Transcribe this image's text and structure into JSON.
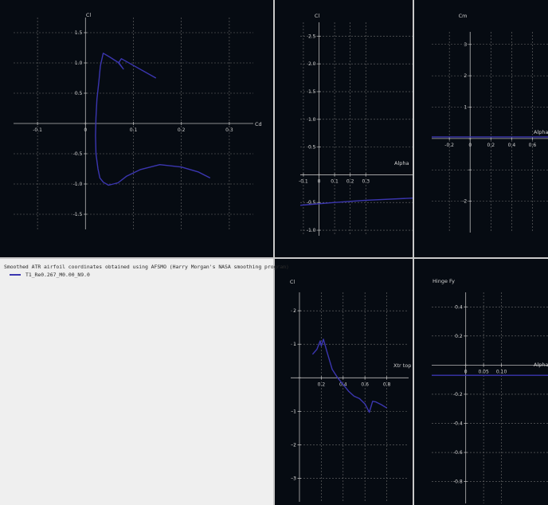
{
  "colors": {
    "background": "#060b12",
    "grid": "#6e6e6e",
    "axis": "#b8b8b8",
    "text": "#d0d0d0",
    "series": "#3b36b0"
  },
  "legend": {
    "title": "Smoothed ATR airfoil coordinates obtained  using AFSMO (Harry Morgan's NASA smoothing program)",
    "series_label": "T1_Re0.267_M0.00_N9.0"
  },
  "chart_data": [
    {
      "id": "cl-cd",
      "type": "line",
      "xlabel": "Cd",
      "ylabel": "Cl",
      "xlim": [
        -0.15,
        0.35
      ],
      "ylim": [
        -1.75,
        1.75
      ],
      "xticks": [
        -0.1,
        0,
        0.1,
        0.2,
        0.3
      ],
      "yticks": [
        -1.5,
        -1.0,
        -0.5,
        0,
        0.5,
        1.0,
        1.5
      ],
      "xtick_labels": [
        "-0.1",
        "0",
        "0.1",
        "0.2",
        "0.3"
      ],
      "ytick_labels": [
        "-1.5",
        "-1.0",
        "-0.5",
        "0",
        "0.5",
        "1.0",
        "1.5"
      ],
      "grid": true,
      "series": [
        {
          "x": [
            0.147,
            0.075,
            0.069,
            0.077,
            0.079,
            0.07,
            0.05,
            0.037,
            0.031,
            0.028,
            0.024,
            0.022,
            0.021,
            0.022,
            0.026,
            0.03,
            0.037,
            0.048,
            0.068,
            0.086,
            0.115,
            0.155,
            0.2,
            0.235,
            0.26
          ],
          "y": [
            0.75,
            1.07,
            1.0,
            0.92,
            0.9,
            1.0,
            1.1,
            1.16,
            0.95,
            0.7,
            0.4,
            0.1,
            -0.2,
            -0.5,
            -0.75,
            -0.9,
            -0.97,
            -1.02,
            -0.98,
            -0.87,
            -0.76,
            -0.68,
            -0.72,
            -0.8,
            -0.9
          ]
        }
      ]
    },
    {
      "id": "cl-alpha",
      "type": "line",
      "xlabel": "Alpha",
      "ylabel": "Cl",
      "xlim": [
        -0.12,
        0.6
      ],
      "ylim": [
        -1.1,
        2.75
      ],
      "xticks": [
        -0.1,
        0,
        0.1,
        0.2,
        0.3
      ],
      "yticks": [
        -1.0,
        -0.5,
        0,
        0.5,
        1.0,
        1.5,
        2.0,
        2.5
      ],
      "xtick_labels": [
        "-0.1",
        "0",
        "0.1",
        "0.2",
        "0.3"
      ],
      "ytick_labels": [
        "-1.0",
        "-0.5",
        "0",
        "0.5",
        "1.0",
        "1.5",
        "2.0",
        "2.5"
      ],
      "grid": true,
      "series": [
        {
          "x": [
            -0.12,
            0.1,
            0.3,
            0.6
          ],
          "y": [
            -0.55,
            -0.5,
            -0.46,
            -0.42
          ]
        }
      ]
    },
    {
      "id": "cm-alpha",
      "type": "line",
      "xlabel": "Alpha",
      "ylabel": "Cm",
      "xlim": [
        -0.37,
        0.75
      ],
      "ylim": [
        -3.0,
        3.4
      ],
      "xticks": [
        -0.2,
        0,
        0.2,
        0.4,
        0.6
      ],
      "yticks": [
        -2,
        -1,
        0,
        1,
        2,
        3
      ],
      "xtick_labels": [
        "-0.2",
        "0",
        "0.2",
        "0.4",
        "0.6"
      ],
      "ytick_labels": [
        "-2",
        "",
        "",
        "1",
        "2",
        "3"
      ],
      "grid": true,
      "series": [
        {
          "x": [
            -0.37,
            0.75
          ],
          "y": [
            0.05,
            0.05
          ]
        }
      ]
    },
    {
      "id": "cl-xtrtop",
      "type": "line",
      "xlabel": "Xtr top",
      "ylabel": "Cl",
      "xlim": [
        -0.08,
        1.0
      ],
      "ylim": [
        -3.7,
        2.55
      ],
      "xticks": [
        0.2,
        0.4,
        0.6,
        0.8
      ],
      "yticks": [
        -3,
        -2,
        -1,
        0,
        1,
        2
      ],
      "xtick_labels": [
        "0.2",
        "0.4",
        "0.6",
        "0.8"
      ],
      "ytick_labels": [
        "-3",
        "-2",
        "-1",
        "0",
        "1",
        "2"
      ],
      "grid": true,
      "series": [
        {
          "x": [
            0.12,
            0.16,
            0.19,
            0.2,
            0.22,
            0.25,
            0.3,
            0.35,
            0.4,
            0.45,
            0.5,
            0.55,
            0.6,
            0.64,
            0.67,
            0.7,
            0.75,
            0.8
          ],
          "y": [
            0.7,
            0.85,
            1.1,
            0.95,
            1.15,
            0.8,
            0.25,
            0.0,
            -0.2,
            -0.4,
            -0.55,
            -0.62,
            -0.78,
            -1.03,
            -0.7,
            -0.72,
            -0.8,
            -0.9
          ]
        }
      ]
    },
    {
      "id": "hingefy-alpha",
      "type": "line",
      "xlabel": "Alpha",
      "ylabel": "Hinge Fy",
      "xlim": [
        -0.095,
        0.23
      ],
      "ylim": [
        -0.95,
        0.5
      ],
      "xticks": [
        0,
        0.05,
        0.1
      ],
      "yticks": [
        -0.8,
        -0.6,
        -0.4,
        -0.2,
        0,
        0.2,
        0.4
      ],
      "xtick_labels": [
        "0",
        "0.05",
        "0.10"
      ],
      "ytick_labels": [
        "-0.8",
        "-0.6",
        "-0.4",
        "-0.2",
        "0",
        "0.2",
        "0.4"
      ],
      "grid": true,
      "series": [
        {
          "x": [
            -0.095,
            0.23
          ],
          "y": [
            -0.07,
            -0.07
          ]
        }
      ]
    }
  ]
}
